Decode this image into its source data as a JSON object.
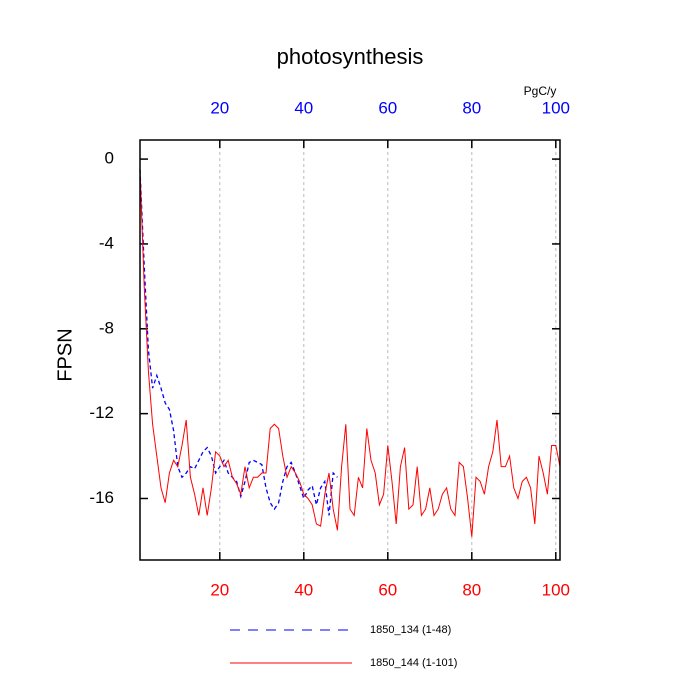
{
  "chart_data": {
    "type": "line",
    "title": "photosynthesis",
    "y_label": "FPSN",
    "units": "PgC/y",
    "xlim": [
      1,
      101
    ],
    "ylim": [
      -18.9,
      0.9
    ],
    "xticks": [
      20,
      40,
      60,
      80,
      100
    ],
    "yticks": [
      0,
      -4,
      -8,
      -12,
      -16
    ],
    "xtick_color": "#ff0000",
    "x2tick_color": "#0000ff",
    "grid": true,
    "series": [
      {
        "name": "1850_134 (1-48)",
        "color": "#0000ff",
        "dash": true,
        "x": [
          1,
          2,
          3,
          4,
          5,
          6,
          7,
          8,
          9,
          10,
          11,
          12,
          13,
          14,
          15,
          16,
          17,
          18,
          19,
          20,
          21,
          22,
          23,
          24,
          25,
          26,
          27,
          28,
          29,
          30,
          31,
          32,
          33,
          34,
          35,
          36,
          37,
          38,
          39,
          40,
          41,
          42,
          43,
          44,
          45,
          46,
          47,
          48
        ],
        "values": [
          -0.5,
          -5,
          -9,
          -10.8,
          -10.2,
          -10.8,
          -11.5,
          -11.8,
          -12.8,
          -14.5,
          -15,
          -14.8,
          -14.5,
          -14.6,
          -14.2,
          -13.8,
          -13.6,
          -14,
          -14.8,
          -14.5,
          -14.2,
          -14.8,
          -15,
          -15.2,
          -15.9,
          -15.2,
          -14.3,
          -14.2,
          -14.3,
          -14.4,
          -15.5,
          -16.2,
          -16.5,
          -16.2,
          -15.2,
          -14.5,
          -14.3,
          -14.8,
          -15.4,
          -16,
          -15.6,
          -15.4,
          -16.3,
          -15.5,
          -15.2,
          -16.8,
          -14.8,
          -15
        ]
      },
      {
        "name": "1850_144 (1-101)",
        "color": "#ff0000",
        "dash": false,
        "x": [
          1,
          2,
          3,
          4,
          5,
          6,
          7,
          8,
          9,
          10,
          11,
          12,
          13,
          14,
          15,
          16,
          17,
          18,
          19,
          20,
          21,
          22,
          23,
          24,
          25,
          26,
          27,
          28,
          29,
          30,
          31,
          32,
          33,
          34,
          35,
          36,
          37,
          38,
          39,
          40,
          41,
          42,
          43,
          44,
          45,
          46,
          47,
          48,
          49,
          50,
          51,
          52,
          53,
          54,
          55,
          56,
          57,
          58,
          59,
          60,
          61,
          62,
          63,
          64,
          65,
          66,
          67,
          68,
          69,
          70,
          71,
          72,
          73,
          74,
          75,
          76,
          77,
          78,
          79,
          80,
          81,
          82,
          83,
          84,
          85,
          86,
          87,
          88,
          89,
          90,
          91,
          92,
          93,
          94,
          95,
          96,
          97,
          98,
          99,
          100,
          101
        ],
        "values": [
          -0.5,
          -6,
          -10,
          -12.5,
          -14,
          -15.5,
          -16.2,
          -14.8,
          -14.2,
          -14.5,
          -13.5,
          -12.3,
          -15,
          -15.8,
          -16.8,
          -15.5,
          -16.8,
          -15.5,
          -13.8,
          -14,
          -14.5,
          -14.2,
          -15,
          -15.3,
          -15.8,
          -14.5,
          -15.5,
          -15,
          -15,
          -14.8,
          -14.8,
          -12.7,
          -12.5,
          -12.7,
          -14,
          -15,
          -14.5,
          -14.8,
          -15.2,
          -15.8,
          -16,
          -16.3,
          -17.2,
          -17.3,
          -15.8,
          -14.8,
          -16.5,
          -17.5,
          -14.5,
          -12.5,
          -16.5,
          -16.8,
          -15,
          -15.5,
          -12.7,
          -14.2,
          -14.8,
          -16.3,
          -15.8,
          -13.5,
          -15.2,
          -17.2,
          -14.5,
          -13.6,
          -16.5,
          -16.3,
          -14.5,
          -16.8,
          -16.5,
          -15.5,
          -16.8,
          -16.5,
          -15.8,
          -15.5,
          -16.5,
          -16.8,
          -14.3,
          -14.5,
          -16,
          -17.8,
          -15,
          -15.2,
          -15.8,
          -14.5,
          -13.8,
          -12.3,
          -14.5,
          -14.5,
          -14,
          -15.5,
          -16,
          -15.2,
          -15,
          -15.5,
          -17.2,
          -14,
          -14.8,
          -15.8,
          -13.5,
          -13.5,
          -14.5
        ]
      }
    ]
  }
}
